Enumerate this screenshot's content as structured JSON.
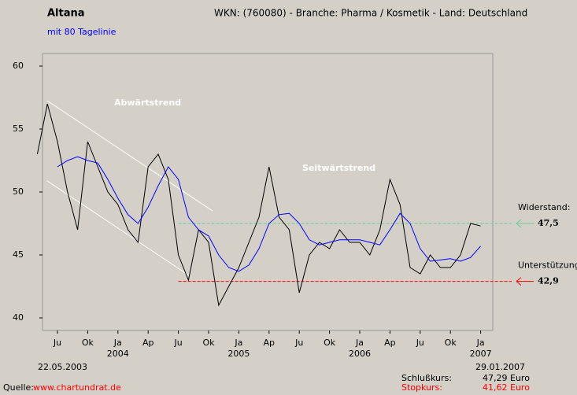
{
  "chart_data": {
    "type": "line",
    "title": "Altana",
    "subtitle": "WKN: (760080) - Branche: Pharma / Kosmetik - Land: Deutschland",
    "x": [
      "2003-05",
      "2003-06",
      "2003-07",
      "2003-08",
      "2003-09",
      "2003-10",
      "2003-11",
      "2003-12",
      "2004-01",
      "2004-02",
      "2004-03",
      "2004-04",
      "2004-05",
      "2004-06",
      "2004-07",
      "2004-08",
      "2004-09",
      "2004-10",
      "2004-11",
      "2004-12",
      "2005-01",
      "2005-02",
      "2005-03",
      "2005-04",
      "2005-05",
      "2005-06",
      "2005-07",
      "2005-08",
      "2005-09",
      "2005-10",
      "2005-11",
      "2005-12",
      "2006-01",
      "2006-02",
      "2006-03",
      "2006-04",
      "2006-05",
      "2006-06",
      "2006-07",
      "2006-08",
      "2006-09",
      "2006-10",
      "2006-11",
      "2006-12",
      "2007-01"
    ],
    "series": [
      {
        "color": "#000000",
        "values": [
          53,
          57,
          54,
          50,
          47,
          54,
          52,
          50,
          49,
          47,
          46,
          52,
          53,
          51,
          45,
          43,
          47,
          46,
          41,
          42.5,
          44,
          46,
          48,
          52,
          48,
          47,
          42,
          45,
          46,
          45.5,
          47,
          46,
          46,
          45,
          47,
          51,
          49,
          44,
          43.5,
          45,
          44,
          44,
          45,
          47.5,
          47.3
        ]
      },
      {
        "name": "mit 80 Tagelinie",
        "color": "#0000ff",
        "values": [
          null,
          null,
          52,
          52.5,
          52.8,
          52.5,
          52.3,
          51,
          49.5,
          48.2,
          47.5,
          48.8,
          50.5,
          52,
          51,
          48,
          47,
          46.5,
          45,
          44,
          43.7,
          44.2,
          45.5,
          47.5,
          48.2,
          48.3,
          47.5,
          46.2,
          45.8,
          46,
          46.2,
          46.2,
          46.2,
          46,
          45.8,
          47,
          48.3,
          47.5,
          45.5,
          44.5,
          44.6,
          44.7,
          44.5,
          44.8,
          45.7
        ]
      }
    ],
    "ylim": [
      39,
      61
    ],
    "yticks": [
      40,
      45,
      50,
      55,
      60
    ],
    "xticks": [
      {
        "value": "2003-07",
        "label": "Ju"
      },
      {
        "value": "2003-10",
        "label": "Ok"
      },
      {
        "value": "2004-01",
        "label": "Ja"
      },
      {
        "value": "2004-04",
        "label": "Ap"
      },
      {
        "value": "2004-07",
        "label": "Ju"
      },
      {
        "value": "2004-10",
        "label": "Ok"
      },
      {
        "value": "2005-01",
        "label": "Ja"
      },
      {
        "value": "2005-04",
        "label": "Ap"
      },
      {
        "value": "2005-07",
        "label": "Ju"
      },
      {
        "value": "2005-10",
        "label": "Ok"
      },
      {
        "value": "2006-01",
        "label": "Ja"
      },
      {
        "value": "2006-04",
        "label": "Ap"
      },
      {
        "value": "2006-07",
        "label": "Ju"
      },
      {
        "value": "2006-10",
        "label": "Ok"
      },
      {
        "value": "2007-01",
        "label": "Ja"
      }
    ],
    "year_labels": [
      {
        "value": "2004-01",
        "label": "2004"
      },
      {
        "value": "2005-01",
        "label": "2005"
      },
      {
        "value": "2006-01",
        "label": "2006"
      },
      {
        "value": "2007-01",
        "label": "2007"
      }
    ],
    "levels": [
      {
        "name": "Widerstand:",
        "value": 47.5,
        "label": "47,5",
        "color": "#66cc99",
        "from": "2004-07"
      },
      {
        "name": "Unterstützung:",
        "value": 42.9,
        "label": "42,9",
        "color": "#ff0000",
        "from": "2004-07"
      }
    ],
    "annotations": [
      "Abwärtstrend",
      "Seitwärtstrend"
    ],
    "start_date": "22.05.2003",
    "end_date": "29.01.2007",
    "source_label": "Quelle:",
    "source": "www.chartundrat.de",
    "close_label": "Schlußkurs:",
    "close": "47,29 Euro",
    "stop_label": "Stopkurs:",
    "stop": "41,62 Euro"
  }
}
